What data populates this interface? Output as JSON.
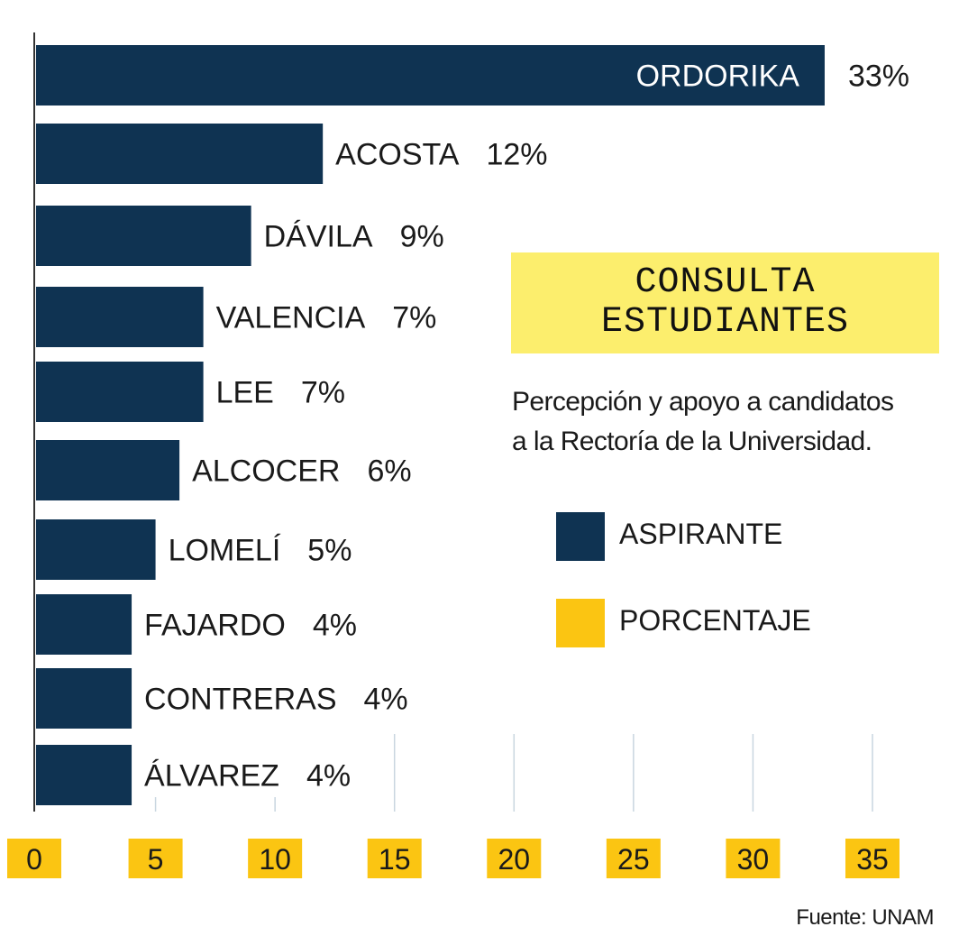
{
  "chart_data": {
    "type": "bar",
    "orientation": "horizontal",
    "categories": [
      "ORDORIKA",
      "ACOSTA",
      "DÁVILA",
      "VALENCIA",
      "LEE",
      "ALCOCER",
      "LOMELÍ",
      "FAJARDO",
      "CONTRERAS",
      "ÁLVAREZ"
    ],
    "values": [
      33,
      12,
      9,
      7,
      7,
      6,
      5,
      4,
      4,
      4
    ],
    "value_labels": [
      "33%",
      "12%",
      "9%",
      "7%",
      "7%",
      "6%",
      "5%",
      "4%",
      "4%",
      "4%"
    ],
    "xticks": [
      0,
      5,
      10,
      15,
      20,
      25,
      30,
      35
    ],
    "xtick_labels": [
      "0",
      "5",
      "10",
      "15",
      "20",
      "25",
      "30",
      "35"
    ],
    "xlim": [
      0,
      35
    ]
  },
  "title": {
    "line1": "CONSULTA",
    "line2": "ESTUDIANTES"
  },
  "subtitle": {
    "line1": "Percepción y apoyo a candidatos",
    "line2": "a la Rectoría de la Universidad."
  },
  "legend": [
    {
      "label": "ASPIRANTE",
      "color": "#0f3352"
    },
    {
      "label": "PORCENTAJE",
      "color": "#fbc512"
    }
  ],
  "source": "Fuente: UNAM",
  "colors": {
    "bar": "#0f3352",
    "tick_box": "#fbc512",
    "gridline": "#c9d6e0",
    "title_bg": "#fcee6d"
  }
}
